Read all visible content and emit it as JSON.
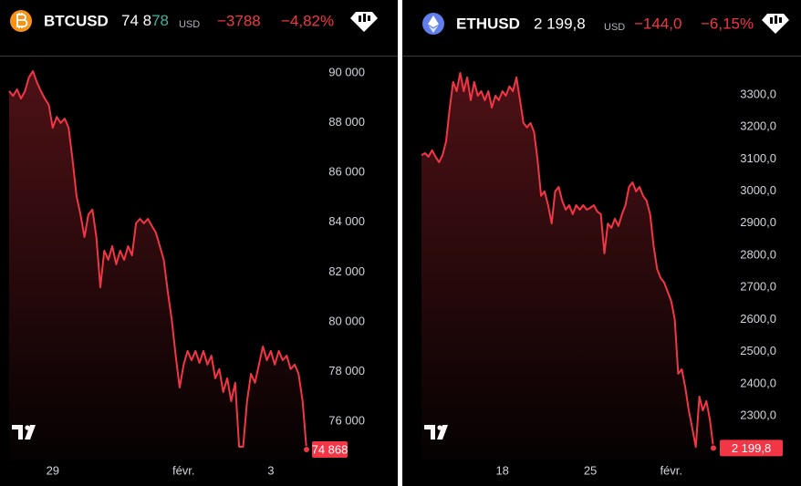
{
  "panels": [
    {
      "symbol": "BTCUSD",
      "price_main": "74 8",
      "price_tick": "78",
      "currency": "USD",
      "change": "−3788",
      "change_percent": "−4,82%"
    },
    {
      "symbol": "ETHUSD",
      "price_main": "2 199,8",
      "currency": "USD",
      "change": "−144,0",
      "change_percent": "−6,15%"
    }
  ],
  "chart_data": [
    {
      "type": "area",
      "color": "#f23645",
      "values": [
        89270,
        89080,
        89340,
        88970,
        89270,
        89820,
        90070,
        89630,
        89270,
        88970,
        88720,
        87800,
        88240,
        87990,
        88170,
        87800,
        86520,
        85050,
        84320,
        83410,
        84320,
        84510,
        83410,
        81390,
        82860,
        82490,
        83040,
        82310,
        82860,
        82490,
        83040,
        82670,
        83960,
        84140,
        83960,
        84140,
        83850,
        83590,
        83040,
        82490,
        81210,
        80110,
        78640,
        77360,
        78280,
        78830,
        78460,
        78830,
        78350,
        78830,
        78280,
        78640,
        77730,
        78100,
        77180,
        77730,
        76810,
        77550,
        74980,
        74980,
        76810,
        77910,
        77550,
        78280,
        79010,
        78460,
        78830,
        78280,
        78830,
        78460,
        78640,
        78100,
        78280,
        77910,
        76810,
        74868
      ],
      "last_price_label": "74 868",
      "xlim": [
        0,
        75
      ],
      "xticks": [
        {
          "value": 11,
          "label": "29"
        },
        {
          "value": 44,
          "label": "févr."
        },
        {
          "value": 66,
          "label": "3"
        }
      ],
      "ylim": [
        74430,
        90660
      ],
      "yticks": [
        {
          "value": 76000,
          "label": "76 000"
        },
        {
          "value": 78000,
          "label": "78 000"
        },
        {
          "value": 80000,
          "label": "80 000"
        },
        {
          "value": 82000,
          "label": "82 000"
        },
        {
          "value": 84000,
          "label": "84 000"
        },
        {
          "value": 86000,
          "label": "86 000"
        },
        {
          "value": 88000,
          "label": "88 000"
        },
        {
          "value": 90000,
          "label": "90 000"
        }
      ]
    },
    {
      "type": "area",
      "color": "#f23645",
      "values": [
        3112,
        3118,
        3107,
        3127,
        3107,
        3090,
        3112,
        3155,
        3255,
        3340,
        3311,
        3368,
        3311,
        3354,
        3283,
        3340,
        3297,
        3311,
        3283,
        3311,
        3260,
        3297,
        3283,
        3311,
        3297,
        3326,
        3311,
        3354,
        3283,
        3212,
        3198,
        3212,
        3184,
        3098,
        2985,
        2999,
        2956,
        2899,
        2999,
        3013,
        2970,
        2942,
        2956,
        2928,
        2956,
        2942,
        2956,
        2942,
        2948,
        2956,
        2936,
        2928,
        2806,
        2899,
        2885,
        2914,
        2891,
        2928,
        2956,
        3013,
        3027,
        2999,
        3013,
        2985,
        2970,
        2928,
        2828,
        2757,
        2729,
        2715,
        2686,
        2658,
        2601,
        2431,
        2445,
        2388,
        2317,
        2260,
        2203,
        2360,
        2317,
        2346,
        2289,
        2199.8
      ],
      "last_price_label": "2 199,8",
      "xlim": [
        0,
        83
      ],
      "xticks": [
        {
          "value": 23,
          "label": "18"
        },
        {
          "value": 48,
          "label": "25"
        },
        {
          "value": 71,
          "label": "févr."
        }
      ],
      "ylim": [
        2161,
        3419
      ],
      "yticks": [
        {
          "value": 2300,
          "label": "2300,0"
        },
        {
          "value": 2400,
          "label": "2400,0"
        },
        {
          "value": 2500,
          "label": "2500,0"
        },
        {
          "value": 2600,
          "label": "2600,0"
        },
        {
          "value": 2700,
          "label": "2700,0"
        },
        {
          "value": 2800,
          "label": "2800,0"
        },
        {
          "value": 2900,
          "label": "2900,0"
        },
        {
          "value": 3000,
          "label": "3000,0"
        },
        {
          "value": 3100,
          "label": "3100,0"
        },
        {
          "value": 3200,
          "label": "3200,0"
        },
        {
          "value": 3300,
          "label": "3300,0"
        }
      ]
    }
  ]
}
